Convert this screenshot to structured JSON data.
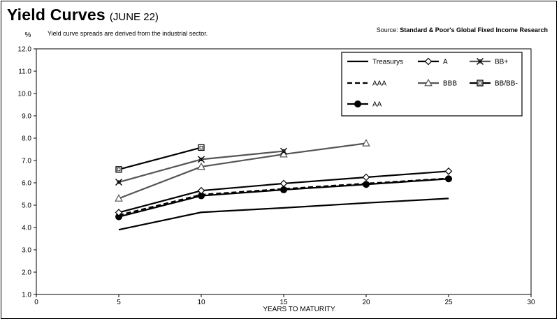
{
  "header": {
    "title": "Yield Curves",
    "date": "(JUNE 22)",
    "subtitle": "Yield curve spreads are derived from the industrial sector.",
    "source_prefix": "Source:",
    "source_name": "Standard & Poor's Global Fixed Income Research"
  },
  "chart_data": {
    "type": "line",
    "title": "Yield Curves (JUNE 22)",
    "xlabel": "YEARS TO MATURITY",
    "ylabel": "%",
    "xlim": [
      0,
      30
    ],
    "ylim": [
      1.0,
      12.0
    ],
    "xticks": [
      0,
      5,
      10,
      15,
      20,
      25,
      30
    ],
    "yticks": [
      1.0,
      2.0,
      3.0,
      4.0,
      5.0,
      6.0,
      7.0,
      8.0,
      9.0,
      10.0,
      11.0,
      12.0
    ],
    "grid": false,
    "legend_position": "top-right",
    "series": [
      {
        "name": "Treasurys",
        "style": "solid",
        "marker": "none",
        "color": "#000000",
        "x": [
          5,
          10,
          15,
          20,
          25
        ],
        "y": [
          3.9,
          4.68,
          4.88,
          5.1,
          5.3
        ]
      },
      {
        "name": "AAA",
        "style": "dashed",
        "marker": "none",
        "color": "#000000",
        "x": [
          5,
          10,
          15,
          20,
          25
        ],
        "y": [
          4.55,
          5.47,
          5.73,
          5.97,
          6.2
        ]
      },
      {
        "name": "AA",
        "style": "solid",
        "marker": "filled-circle",
        "color": "#000000",
        "x": [
          5,
          10,
          15,
          20,
          25
        ],
        "y": [
          4.48,
          5.42,
          5.69,
          5.93,
          6.18
        ]
      },
      {
        "name": "A",
        "style": "solid",
        "marker": "diamond",
        "color": "#000000",
        "x": [
          5,
          10,
          15,
          20,
          25
        ],
        "y": [
          4.67,
          5.65,
          5.97,
          6.25,
          6.52
        ]
      },
      {
        "name": "BBB",
        "style": "solid",
        "marker": "triangle",
        "color": "#555555",
        "x": [
          5,
          10,
          15,
          20
        ],
        "y": [
          5.3,
          6.72,
          7.28,
          7.77
        ]
      },
      {
        "name": "BB+",
        "style": "solid",
        "marker": "star",
        "color": "#555555",
        "x": [
          5,
          10,
          15
        ],
        "y": [
          6.03,
          7.05,
          7.42
        ]
      },
      {
        "name": "BB/BB-",
        "style": "solid",
        "marker": "square",
        "color": "#000000",
        "x": [
          5,
          10
        ],
        "y": [
          6.6,
          7.58
        ]
      }
    ]
  }
}
